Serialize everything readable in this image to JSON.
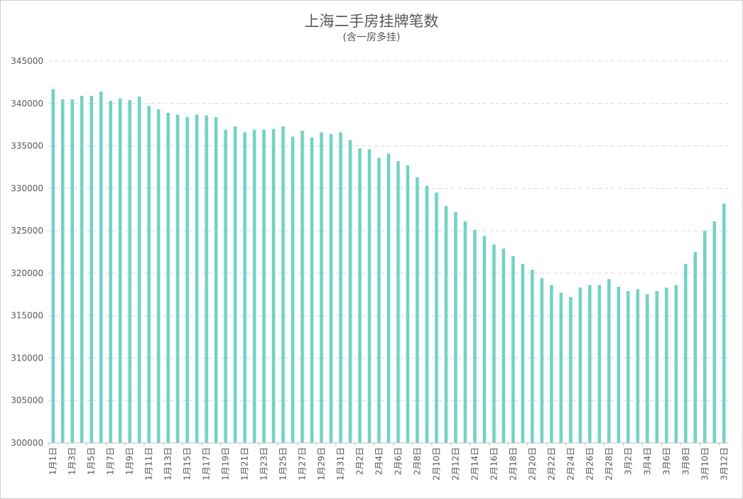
{
  "chart_data": {
    "type": "bar",
    "title": "上海二手房挂牌笔数",
    "subtitle": "(含一房多挂)",
    "xlabel": "",
    "ylabel": "",
    "ylim": [
      300000,
      345000
    ],
    "yticks": [
      300000,
      305000,
      310000,
      315000,
      320000,
      325000,
      330000,
      335000,
      340000,
      345000
    ],
    "grid": true,
    "bar_color": "#6dd4c7",
    "categories": [
      "1月1日",
      "1月2日",
      "1月3日",
      "1月4日",
      "1月5日",
      "1月6日",
      "1月7日",
      "1月8日",
      "1月9日",
      "1月10日",
      "1月11日",
      "1月12日",
      "1月13日",
      "1月14日",
      "1月15日",
      "1月16日",
      "1月17日",
      "1月18日",
      "1月19日",
      "1月20日",
      "1月21日",
      "1月22日",
      "1月23日",
      "1月24日",
      "1月25日",
      "1月26日",
      "1月27日",
      "1月28日",
      "1月29日",
      "1月30日",
      "1月31日",
      "2月1日",
      "2月2日",
      "2月3日",
      "2月4日",
      "2月5日",
      "2月6日",
      "2月7日",
      "2月8日",
      "2月9日",
      "2月10日",
      "2月11日",
      "2月12日",
      "2月13日",
      "2月14日",
      "2月15日",
      "2月16日",
      "2月17日",
      "2月18日",
      "2月19日",
      "2月20日",
      "2月21日",
      "2月22日",
      "2月23日",
      "2月24日",
      "2月25日",
      "2月26日",
      "2月27日",
      "2月28日",
      "3月1日",
      "3月2日",
      "3月3日",
      "3月4日",
      "3月5日",
      "3月6日",
      "3月7日",
      "3月8日",
      "3月9日",
      "3月10日",
      "3月11日",
      "3月12日"
    ],
    "values": [
      341700,
      340500,
      340500,
      340900,
      340900,
      341400,
      340300,
      340600,
      340400,
      340800,
      339700,
      339300,
      338900,
      338700,
      338400,
      338700,
      338600,
      338400,
      336900,
      337300,
      336600,
      336900,
      336900,
      337000,
      337300,
      336100,
      336800,
      336000,
      336600,
      336400,
      336600,
      335700,
      334700,
      334600,
      333600,
      334100,
      333200,
      332700,
      331300,
      330300,
      329500,
      327900,
      327200,
      326100,
      325100,
      324400,
      323400,
      322900,
      322000,
      321100,
      320400,
      319400,
      318600,
      317700,
      317200,
      318300,
      318600,
      318600,
      319300,
      318400,
      317900,
      318100,
      317500,
      317900,
      318300,
      318600,
      321100,
      322500,
      325000,
      326100,
      328200
    ]
  }
}
